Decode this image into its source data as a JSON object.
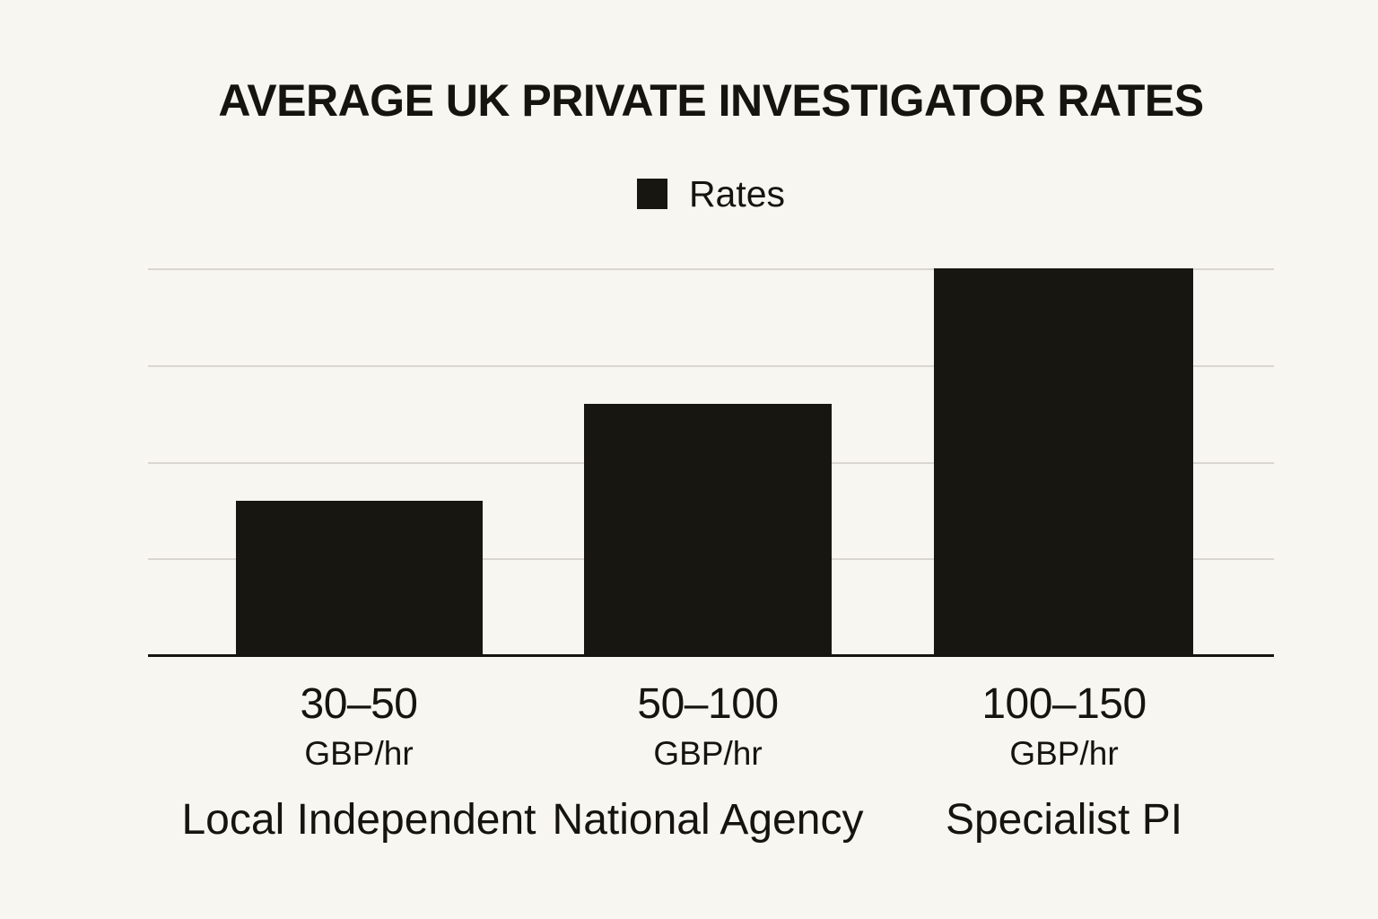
{
  "chart": {
    "title": "AVERAGE UK PRIVATE INVESTIGATOR RATES",
    "legend": {
      "label": "Rates"
    }
  },
  "colors": {
    "background": "#f8f6f1",
    "bar": "#171611",
    "text": "#15140e",
    "gridline": "#d9d6d0",
    "axis": "#15140e"
  },
  "chart_data": {
    "type": "bar",
    "title": "AVERAGE UK PRIVATE INVESTIGATOR RATES",
    "legend": [
      "Rates"
    ],
    "legend_position": "top-center",
    "categories": [
      "Local Independent",
      "National Agency",
      "Specialist PI"
    ],
    "tick_labels": [
      {
        "range": "30–50",
        "unit": "GBP/hr",
        "name": "Local Independent"
      },
      {
        "range": "50–100",
        "unit": "GBP/hr",
        "name": "National Agency"
      },
      {
        "range": "100–150",
        "unit": "GBP/hr",
        "name": "Specialist PI"
      }
    ],
    "series": [
      {
        "name": "Rates",
        "values": [
          40,
          65,
          100
        ]
      }
    ],
    "ylim": [
      0,
      100
    ],
    "grid": true,
    "grid_divisions": 4,
    "y_axis_labels_shown": false,
    "xlabel": "",
    "ylabel": ""
  }
}
